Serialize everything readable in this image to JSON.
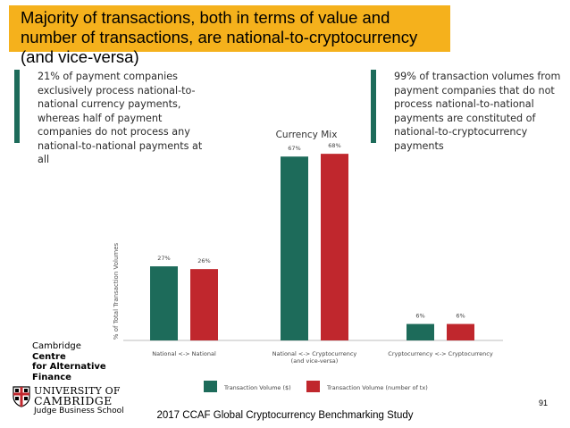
{
  "slide": {
    "title": "Majority of transactions, both in terms of value and number of transactions, are national-to-cryptocurrency (and vice-versa)",
    "callout_left": "21% of payment companies exclusively process national-to-national currency payments, whereas half of payment companies do not process any national-to-national payments at all",
    "callout_right": "99% of transaction volumes from payment companies that do not process national-to-national payments are constituted of national-to-cryptocurrency payments",
    "logo_ccaf": {
      "line1": "Cambridge",
      "line2": "Centre",
      "line3": "for Alternative",
      "line4": "Finance"
    },
    "logo_university": {
      "line1": "UNIVERSITY OF",
      "line2": "CAMBRIDGE",
      "line3": "Judge Business School"
    },
    "footer": "2017 CCAF Global Cryptocurrency Benchmarking Study",
    "page_number": "91"
  },
  "colors": {
    "banner": "#f5b11c",
    "series1": "#1d6b5a",
    "series2": "#c0272d",
    "accent_bar": "#1d6b5a"
  },
  "chart_data": {
    "type": "bar",
    "title": "Currency Mix",
    "ylabel": "% of Total Transaction Volumes",
    "xlabel": "",
    "ylim": [
      0,
      70
    ],
    "grid": false,
    "legend": "bottom-center",
    "categories": [
      "National <-> National",
      "National <-> Cryptocurrency (and vice-versa)",
      "Cryptocurrency <-> Cryptocurrency"
    ],
    "series": [
      {
        "name": "Transaction Volume ($)",
        "values": [
          27,
          67,
          6
        ],
        "labels": [
          "27%",
          "67%",
          "6%"
        ]
      },
      {
        "name": "Transaction Volume (number of tx)",
        "values": [
          26,
          68,
          6
        ],
        "labels": [
          "26%",
          "68%",
          "6%"
        ]
      }
    ]
  }
}
